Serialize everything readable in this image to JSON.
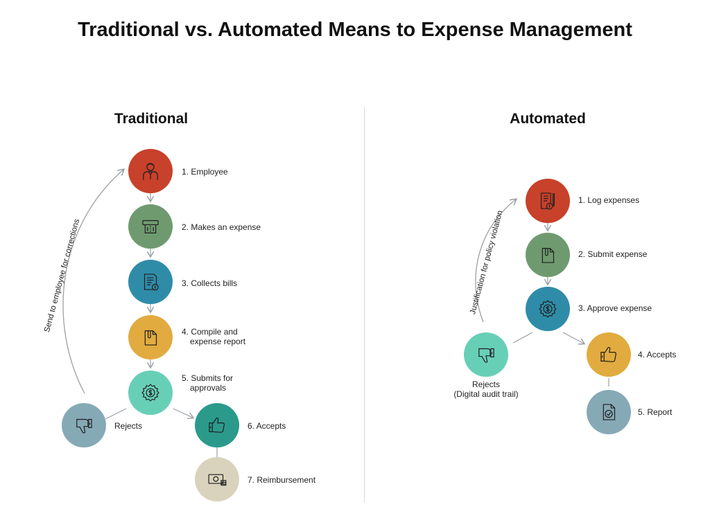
{
  "title": "Traditional vs. Automated Means to Expense Management",
  "traditional": {
    "heading": "Traditional",
    "steps": [
      {
        "label": "1. Employee",
        "color": "#c8412b",
        "icon": "employee-icon"
      },
      {
        "label": "2. Makes an expense",
        "color": "#6f9a6f",
        "icon": "card-machine-icon"
      },
      {
        "label": "3. Collects bills",
        "color": "#2f8ca8",
        "icon": "bill-icon"
      },
      {
        "label_line1": "4. Compile and",
        "label_line2": "expense report",
        "color": "#e1ab3f",
        "icon": "document-icon"
      },
      {
        "label_line1": "5. Submits for",
        "label_line2": "approvals",
        "color": "#68cfb7",
        "icon": "dollar-gear-icon"
      },
      {
        "label": "6. Accepts",
        "color": "#2b9a8b",
        "icon": "thumbs-up-icon"
      },
      {
        "label": "7. Reimbursement",
        "color": "#d9d3bd",
        "icon": "cash-icon"
      }
    ],
    "reject_label": "Rejects",
    "reject_color": "#86a9b6",
    "loop_label": "Send to employee for corrections"
  },
  "automated": {
    "heading": "Automated",
    "steps": [
      {
        "label": "1. Log expenses",
        "color": "#c8412b",
        "icon": "log-expense-icon"
      },
      {
        "label": "2. Submit expense",
        "color": "#6f9a6f",
        "icon": "document-icon"
      },
      {
        "label": "3. Approve expense",
        "color": "#2f8ca8",
        "icon": "dollar-gear-icon"
      },
      {
        "label": "4. Accepts",
        "color": "#e1ab3f",
        "icon": "thumbs-up-icon"
      },
      {
        "label": "5. Report",
        "color": "#86a9b6",
        "icon": "report-check-icon"
      }
    ],
    "reject_label_line1": "Rejects",
    "reject_label_line2": "(Digital audit trail)",
    "reject_color": "#68cfb7",
    "loop_label": "Justification for policy violation"
  }
}
